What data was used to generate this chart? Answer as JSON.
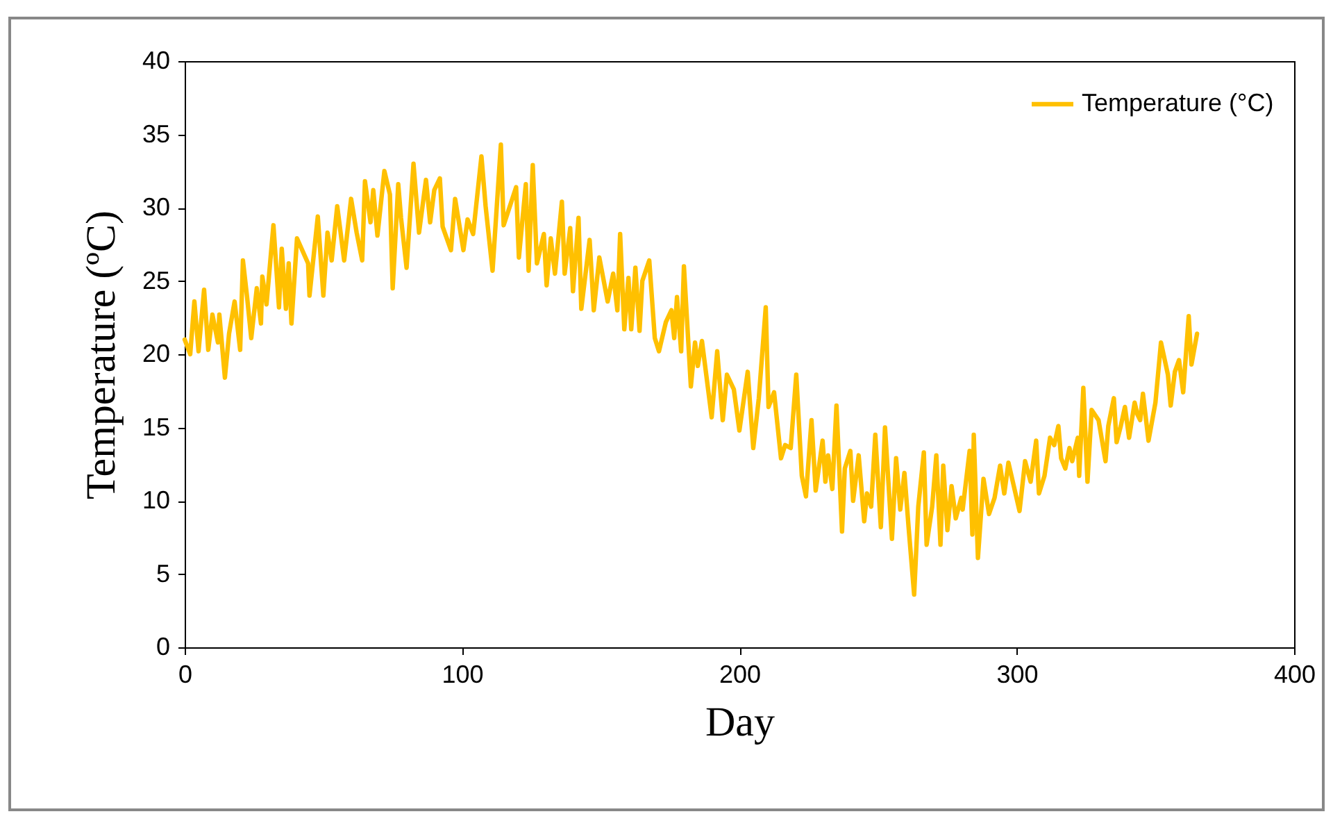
{
  "chart_data": {
    "type": "line",
    "xlabel": "Day",
    "ylabel": "Temperature  (ºC)",
    "xlim": [
      0,
      400
    ],
    "xticks": [
      0,
      100,
      200,
      300,
      400
    ],
    "ylim": [
      0,
      40
    ],
    "yticks": [
      0,
      5,
      10,
      15,
      20,
      25,
      30,
      35,
      40
    ],
    "grid": false,
    "legend": "top right",
    "marker": "none",
    "line_style": "solid",
    "x": [
      0,
      2,
      3.5,
      5,
      7,
      8.5,
      10,
      12,
      12.5,
      14.5,
      16,
      18,
      20,
      21,
      22.5,
      24,
      26,
      27.5,
      28,
      29.5,
      32,
      34,
      35,
      36.5,
      37.5,
      38.5,
      40.5,
      44.5,
      45,
      48,
      50,
      51.5,
      53,
      55,
      57.5,
      60,
      62,
      64,
      65,
      67,
      68,
      69.5,
      72,
      74,
      75,
      77,
      78,
      80,
      82.5,
      84.5,
      87,
      88.5,
      90,
      92,
      93,
      96,
      97.5,
      100.5,
      102,
      104,
      107,
      108.5,
      111,
      114,
      115,
      119.5,
      120.5,
      123,
      124,
      125.5,
      127,
      129.5,
      130.5,
      132,
      133.5,
      136,
      137,
      139,
      140,
      142,
      143,
      146,
      147.5,
      149.5,
      152.5,
      154.5,
      156,
      157,
      158.5,
      160,
      161,
      162.5,
      164,
      165,
      167.5,
      169.5,
      171,
      173.5,
      175.5,
      176.5,
      177.5,
      179,
      180,
      182.5,
      184,
      185,
      186.5,
      190,
      192,
      194,
      195.5,
      198,
      200,
      203,
      205,
      207,
      209.5,
      210.5,
      212.5,
      215,
      216.5,
      218.5,
      220.5,
      222.5,
      224,
      226,
      227.5,
      230,
      231,
      232,
      233.5,
      235,
      237,
      238,
      240,
      241,
      243,
      245,
      246,
      247.5,
      249,
      251,
      252.5,
      255,
      256.5,
      258,
      259.5,
      261,
      263,
      264.5,
      266.5,
      267.5,
      269.5,
      271,
      272.5,
      273.5,
      275,
      276.5,
      278,
      280,
      280.5,
      283,
      284,
      284.5,
      286,
      288,
      290,
      292,
      294,
      295.5,
      297,
      301,
      303,
      305,
      307,
      308,
      310,
      312,
      313.5,
      315,
      316,
      317.5,
      319,
      320,
      322,
      322.5,
      324,
      325.5,
      327,
      329.5,
      332,
      333,
      335,
      336,
      337.5,
      339,
      340.5,
      342.5,
      343.5,
      344.5,
      345.5,
      347.5,
      350,
      352,
      354.5,
      355.5,
      357,
      358.5,
      360,
      362,
      363,
      365
    ],
    "series": [
      {
        "name": "Temperature (°C)",
        "color": "#ffc000",
        "values": [
          21.0,
          20.0,
          23.6,
          20.2,
          24.4,
          20.3,
          22.7,
          20.8,
          22.7,
          18.4,
          21.4,
          23.6,
          20.3,
          26.4,
          23.9,
          21.1,
          24.5,
          22.1,
          25.3,
          23.4,
          28.8,
          23.2,
          27.2,
          23.1,
          26.2,
          22.1,
          27.9,
          26.2,
          24.0,
          29.4,
          24.0,
          28.3,
          26.4,
          30.1,
          26.4,
          30.6,
          28.3,
          26.4,
          31.8,
          29.0,
          31.2,
          28.1,
          32.5,
          30.9,
          24.5,
          31.6,
          29.3,
          25.9,
          33.0,
          28.3,
          31.9,
          29.0,
          31.2,
          32.0,
          28.7,
          27.1,
          30.6,
          27.1,
          29.2,
          28.2,
          33.5,
          30.1,
          25.7,
          34.3,
          28.8,
          31.4,
          26.6,
          31.6,
          25.7,
          32.9,
          26.2,
          28.2,
          24.7,
          27.9,
          25.5,
          30.4,
          25.5,
          28.6,
          24.3,
          29.3,
          23.1,
          27.8,
          23.0,
          26.6,
          23.6,
          25.5,
          23.0,
          28.2,
          21.7,
          25.2,
          21.7,
          25.9,
          21.6,
          25.0,
          26.4,
          21.1,
          20.2,
          22.2,
          23.0,
          21.1,
          23.9,
          20.2,
          26.0,
          17.8,
          20.8,
          19.2,
          20.9,
          15.7,
          20.2,
          15.5,
          18.6,
          17.6,
          14.8,
          18.8,
          13.6,
          17.0,
          23.2,
          16.4,
          17.4,
          12.9,
          13.8,
          13.6,
          18.6,
          11.7,
          10.3,
          15.5,
          10.7,
          14.1,
          11.3,
          13.1,
          10.8,
          16.5,
          7.9,
          12.2,
          13.4,
          10.0,
          13.1,
          8.6,
          10.5,
          9.6,
          14.5,
          8.2,
          15.0,
          7.4,
          12.9,
          9.4,
          11.9,
          8.2,
          3.6,
          9.6,
          13.3,
          7.0,
          9.6,
          13.1,
          7.0,
          12.4,
          8.0,
          11.0,
          8.8,
          10.2,
          9.4,
          13.4,
          7.7,
          14.5,
          6.1,
          11.5,
          9.1,
          10.2,
          12.4,
          10.5,
          12.6,
          9.3,
          12.7,
          11.3,
          14.1,
          10.5,
          11.7,
          14.3,
          13.8,
          15.1,
          12.9,
          12.2,
          13.6,
          12.7,
          14.3,
          11.7,
          17.7,
          11.3,
          16.2,
          15.5,
          12.7,
          15.1,
          17.0,
          14.0,
          15.1,
          16.4,
          14.3,
          16.7,
          15.9,
          15.5,
          17.3,
          14.1,
          16.7,
          20.8,
          18.6,
          16.5,
          18.8,
          19.6,
          17.4,
          22.6,
          19.3,
          21.4
        ]
      }
    ]
  }
}
